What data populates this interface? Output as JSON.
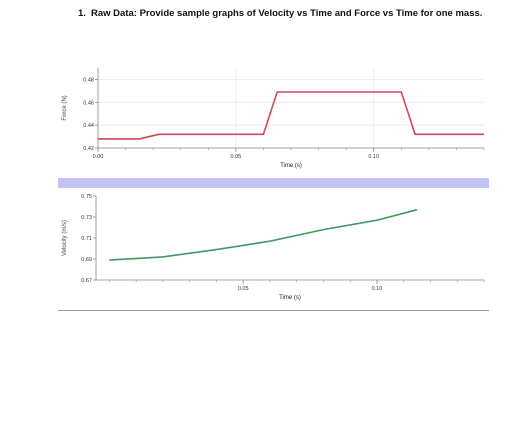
{
  "question": {
    "number": "1.",
    "text": "Raw Data: Provide sample graphs of Velocity vs Time and Force vs Time for one mass."
  },
  "colors": {
    "force_line": "#d2455a",
    "velocity_line": "#3f9a62",
    "separator": "#c3c3f3",
    "axis": "#8a8a8a",
    "grid": "#e6e6e6"
  },
  "chart_data": [
    {
      "type": "line",
      "title": "",
      "xlabel": "Time (s)",
      "ylabel": "Force (N)",
      "xlim": [
        0.0,
        0.14
      ],
      "ylim": [
        0.42,
        0.49
      ],
      "x_ticks": [
        "0.00",
        "0.05",
        "0.10"
      ],
      "y_ticks": [
        "0.42",
        "0.44",
        "0.46",
        "0.48"
      ],
      "grid": true,
      "series": [
        {
          "x": [
            0.0,
            0.015,
            0.022,
            0.06,
            0.065,
            0.11,
            0.115,
            0.14
          ],
          "y": [
            0.428,
            0.428,
            0.432,
            0.432,
            0.469,
            0.469,
            0.432,
            0.432
          ]
        }
      ]
    },
    {
      "type": "line",
      "title": "",
      "xlabel": "Time (s)",
      "ylabel": "Velocity (m/s)",
      "xlim": [
        -0.005,
        0.14
      ],
      "ylim": [
        0.67,
        0.75
      ],
      "x_ticks": [
        "0.05",
        "0.10"
      ],
      "y_ticks": [
        "0.67",
        "0.69",
        "0.71",
        "0.73",
        "0.75"
      ],
      "grid": false,
      "series": [
        {
          "x": [
            0.0,
            0.02,
            0.04,
            0.06,
            0.08,
            0.1,
            0.115
          ],
          "y": [
            0.689,
            0.692,
            0.699,
            0.707,
            0.718,
            0.727,
            0.737
          ]
        }
      ]
    }
  ]
}
